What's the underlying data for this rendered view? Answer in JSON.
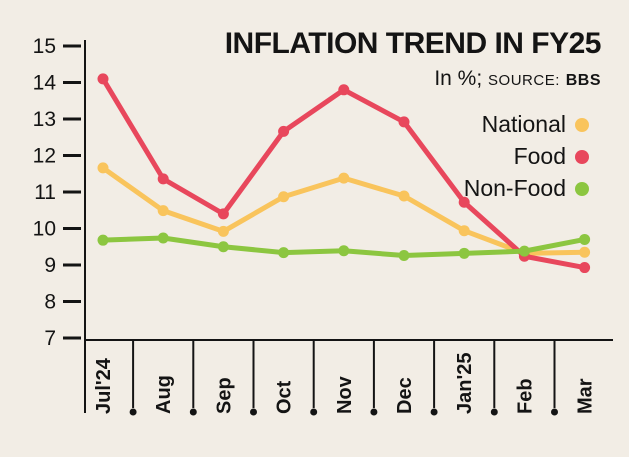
{
  "canvas": {
    "background": "#f2ede5",
    "text_color": "#141414"
  },
  "header": {
    "title": "INFLATION TREND IN FY25",
    "unit": "In %;",
    "source_label": "SOURCE:",
    "source_value": "BBS"
  },
  "chart_data": {
    "type": "line",
    "categories": [
      "Jul'24",
      "Aug",
      "Sep",
      "Oct",
      "Nov",
      "Dec",
      "Jan'25",
      "Feb",
      "Mar"
    ],
    "series": [
      {
        "name": "National",
        "color": "#f9c45c",
        "values": [
          11.66,
          10.49,
          9.92,
          10.87,
          11.38,
          10.89,
          9.94,
          9.32,
          9.35
        ]
      },
      {
        "name": "Food",
        "color": "#e8475c",
        "values": [
          14.1,
          11.36,
          10.4,
          12.66,
          13.8,
          12.92,
          10.72,
          9.24,
          8.93
        ]
      },
      {
        "name": "Non-Food",
        "color": "#8cc640",
        "values": [
          9.68,
          9.74,
          9.5,
          9.34,
          9.39,
          9.26,
          9.32,
          9.38,
          9.7
        ]
      }
    ],
    "legend_order": [
      "National",
      "Food",
      "Non-Food"
    ],
    "ylim": [
      7,
      15
    ],
    "yticks": [
      15,
      14,
      13,
      12,
      11,
      10,
      9,
      8,
      7
    ],
    "legend_position": "right",
    "grid": false,
    "axis_color": "#141414"
  }
}
